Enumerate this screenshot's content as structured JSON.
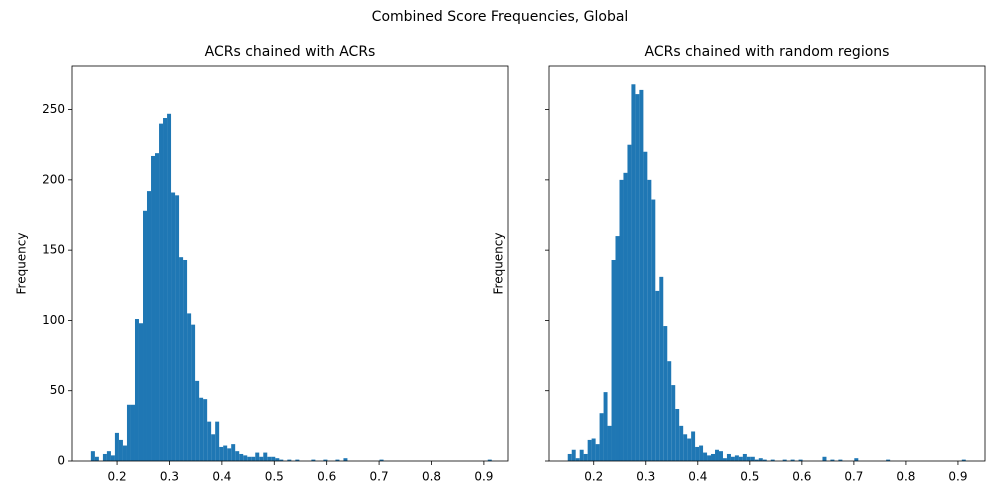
{
  "title": "Combined Score Frequencies, Global",
  "chart_data": [
    {
      "type": "histogram",
      "title": "ACRs chained with ACRs",
      "ylabel": "Frequency",
      "color": "#1f77b4",
      "bins": [
        0.15,
        0.1577,
        0.1653,
        0.173,
        0.1806,
        0.1883,
        0.1959,
        0.2036,
        0.2112,
        0.2189,
        0.2265,
        0.2342,
        0.2418,
        0.2495,
        0.2571,
        0.2648,
        0.2724,
        0.2801,
        0.2877,
        0.2954,
        0.303,
        0.3107,
        0.3183,
        0.326,
        0.3336,
        0.3413,
        0.3489,
        0.3566,
        0.3642,
        0.3719,
        0.3795,
        0.3872,
        0.3948,
        0.4025,
        0.4101,
        0.4178,
        0.4254,
        0.4331,
        0.4407,
        0.4484,
        0.456,
        0.4637,
        0.4713,
        0.479,
        0.4866,
        0.4943,
        0.5019,
        0.5096,
        0.5172,
        0.5249,
        0.5325,
        0.5402,
        0.5478,
        0.5555,
        0.5631,
        0.5708,
        0.5784,
        0.5861,
        0.5937,
        0.6014,
        0.609,
        0.6167,
        0.6243,
        0.632,
        0.6396,
        0.6473,
        0.6549,
        0.6626,
        0.6702,
        0.6779,
        0.6855,
        0.6932,
        0.7008,
        0.7085,
        0.7161,
        0.7238,
        0.7314,
        0.7391,
        0.7467,
        0.7544,
        0.762,
        0.7697,
        0.7773,
        0.785,
        0.7926,
        0.8003,
        0.8079,
        0.8156,
        0.8232,
        0.8309,
        0.8385,
        0.8462,
        0.8538,
        0.8615,
        0.8691,
        0.8768,
        0.8844,
        0.8921,
        0.8997,
        0.9074,
        0.915
      ],
      "values": [
        7,
        3,
        0,
        5,
        7,
        4,
        20,
        15,
        11,
        40,
        40,
        101,
        98,
        178,
        192,
        217,
        219,
        240,
        244,
        247,
        191,
        189,
        145,
        143,
        105,
        97,
        57,
        45,
        44,
        28,
        19,
        28,
        10,
        11,
        9,
        12,
        7,
        5,
        4,
        3,
        3,
        6,
        3,
        6,
        3,
        3,
        2,
        1,
        0,
        1,
        0,
        1,
        0,
        0,
        0,
        1,
        0,
        0,
        1,
        0,
        0,
        1,
        0,
        2,
        0,
        0,
        0,
        0,
        0,
        0,
        0,
        0,
        1,
        0,
        0,
        0,
        0,
        0,
        0,
        0,
        0,
        0,
        0,
        0,
        0,
        0,
        0,
        0,
        0,
        0,
        0,
        0,
        0,
        0,
        0,
        0,
        0,
        0,
        0,
        1
      ],
      "xlim": [
        0.114,
        0.946
      ],
      "ylim": [
        0,
        281
      ],
      "xticks": [
        0.2,
        0.3,
        0.4,
        0.5,
        0.6,
        0.7,
        0.8,
        0.9
      ],
      "yticks": [
        0,
        50,
        100,
        150,
        200,
        250
      ],
      "show_ytick_labels": true
    },
    {
      "type": "histogram",
      "title": "ACRs chained with random regions",
      "ylabel": "Frequency",
      "color": "#1f77b4",
      "bins": [
        0.15,
        0.1577,
        0.1653,
        0.173,
        0.1806,
        0.1883,
        0.1959,
        0.2036,
        0.2112,
        0.2189,
        0.2265,
        0.2342,
        0.2418,
        0.2495,
        0.2571,
        0.2648,
        0.2724,
        0.2801,
        0.2877,
        0.2954,
        0.303,
        0.3107,
        0.3183,
        0.326,
        0.3336,
        0.3413,
        0.3489,
        0.3566,
        0.3642,
        0.3719,
        0.3795,
        0.3872,
        0.3948,
        0.4025,
        0.4101,
        0.4178,
        0.4254,
        0.4331,
        0.4407,
        0.4484,
        0.456,
        0.4637,
        0.4713,
        0.479,
        0.4866,
        0.4943,
        0.5019,
        0.5096,
        0.5172,
        0.5249,
        0.5325,
        0.5402,
        0.5478,
        0.5555,
        0.5631,
        0.5708,
        0.5784,
        0.5861,
        0.5937,
        0.6014,
        0.609,
        0.6167,
        0.6243,
        0.632,
        0.6396,
        0.6473,
        0.6549,
        0.6626,
        0.6702,
        0.6779,
        0.6855,
        0.6932,
        0.7008,
        0.7085,
        0.7161,
        0.7238,
        0.7314,
        0.7391,
        0.7467,
        0.7544,
        0.762,
        0.7697,
        0.7773,
        0.785,
        0.7926,
        0.8003,
        0.8079,
        0.8156,
        0.8232,
        0.8309,
        0.8385,
        0.8462,
        0.8538,
        0.8615,
        0.8691,
        0.8768,
        0.8844,
        0.8921,
        0.8997,
        0.9074,
        0.915
      ],
      "values": [
        5,
        8,
        2,
        8,
        5,
        15,
        16,
        12,
        34,
        49,
        25,
        143,
        160,
        200,
        205,
        225,
        268,
        261,
        264,
        220,
        200,
        186,
        121,
        131,
        96,
        71,
        54,
        37,
        25,
        19,
        16,
        21,
        10,
        11,
        6,
        4,
        5,
        8,
        7,
        2,
        5,
        3,
        4,
        3,
        5,
        3,
        3,
        1,
        2,
        1,
        0,
        1,
        0,
        0,
        1,
        0,
        1,
        0,
        1,
        0,
        0,
        0,
        0,
        0,
        3,
        0,
        1,
        0,
        1,
        0,
        0,
        0,
        2,
        0,
        0,
        0,
        0,
        0,
        0,
        0,
        1,
        0,
        0,
        0,
        0,
        0,
        0,
        0,
        0,
        0,
        0,
        0,
        0,
        0,
        0,
        0,
        0,
        0,
        0,
        1
      ],
      "xlim": [
        0.114,
        0.952
      ],
      "ylim": [
        0,
        281
      ],
      "xticks": [
        0.2,
        0.3,
        0.4,
        0.5,
        0.6,
        0.7,
        0.8,
        0.9
      ],
      "yticks": [
        0,
        50,
        100,
        150,
        200,
        250
      ],
      "show_ytick_labels": false
    }
  ]
}
